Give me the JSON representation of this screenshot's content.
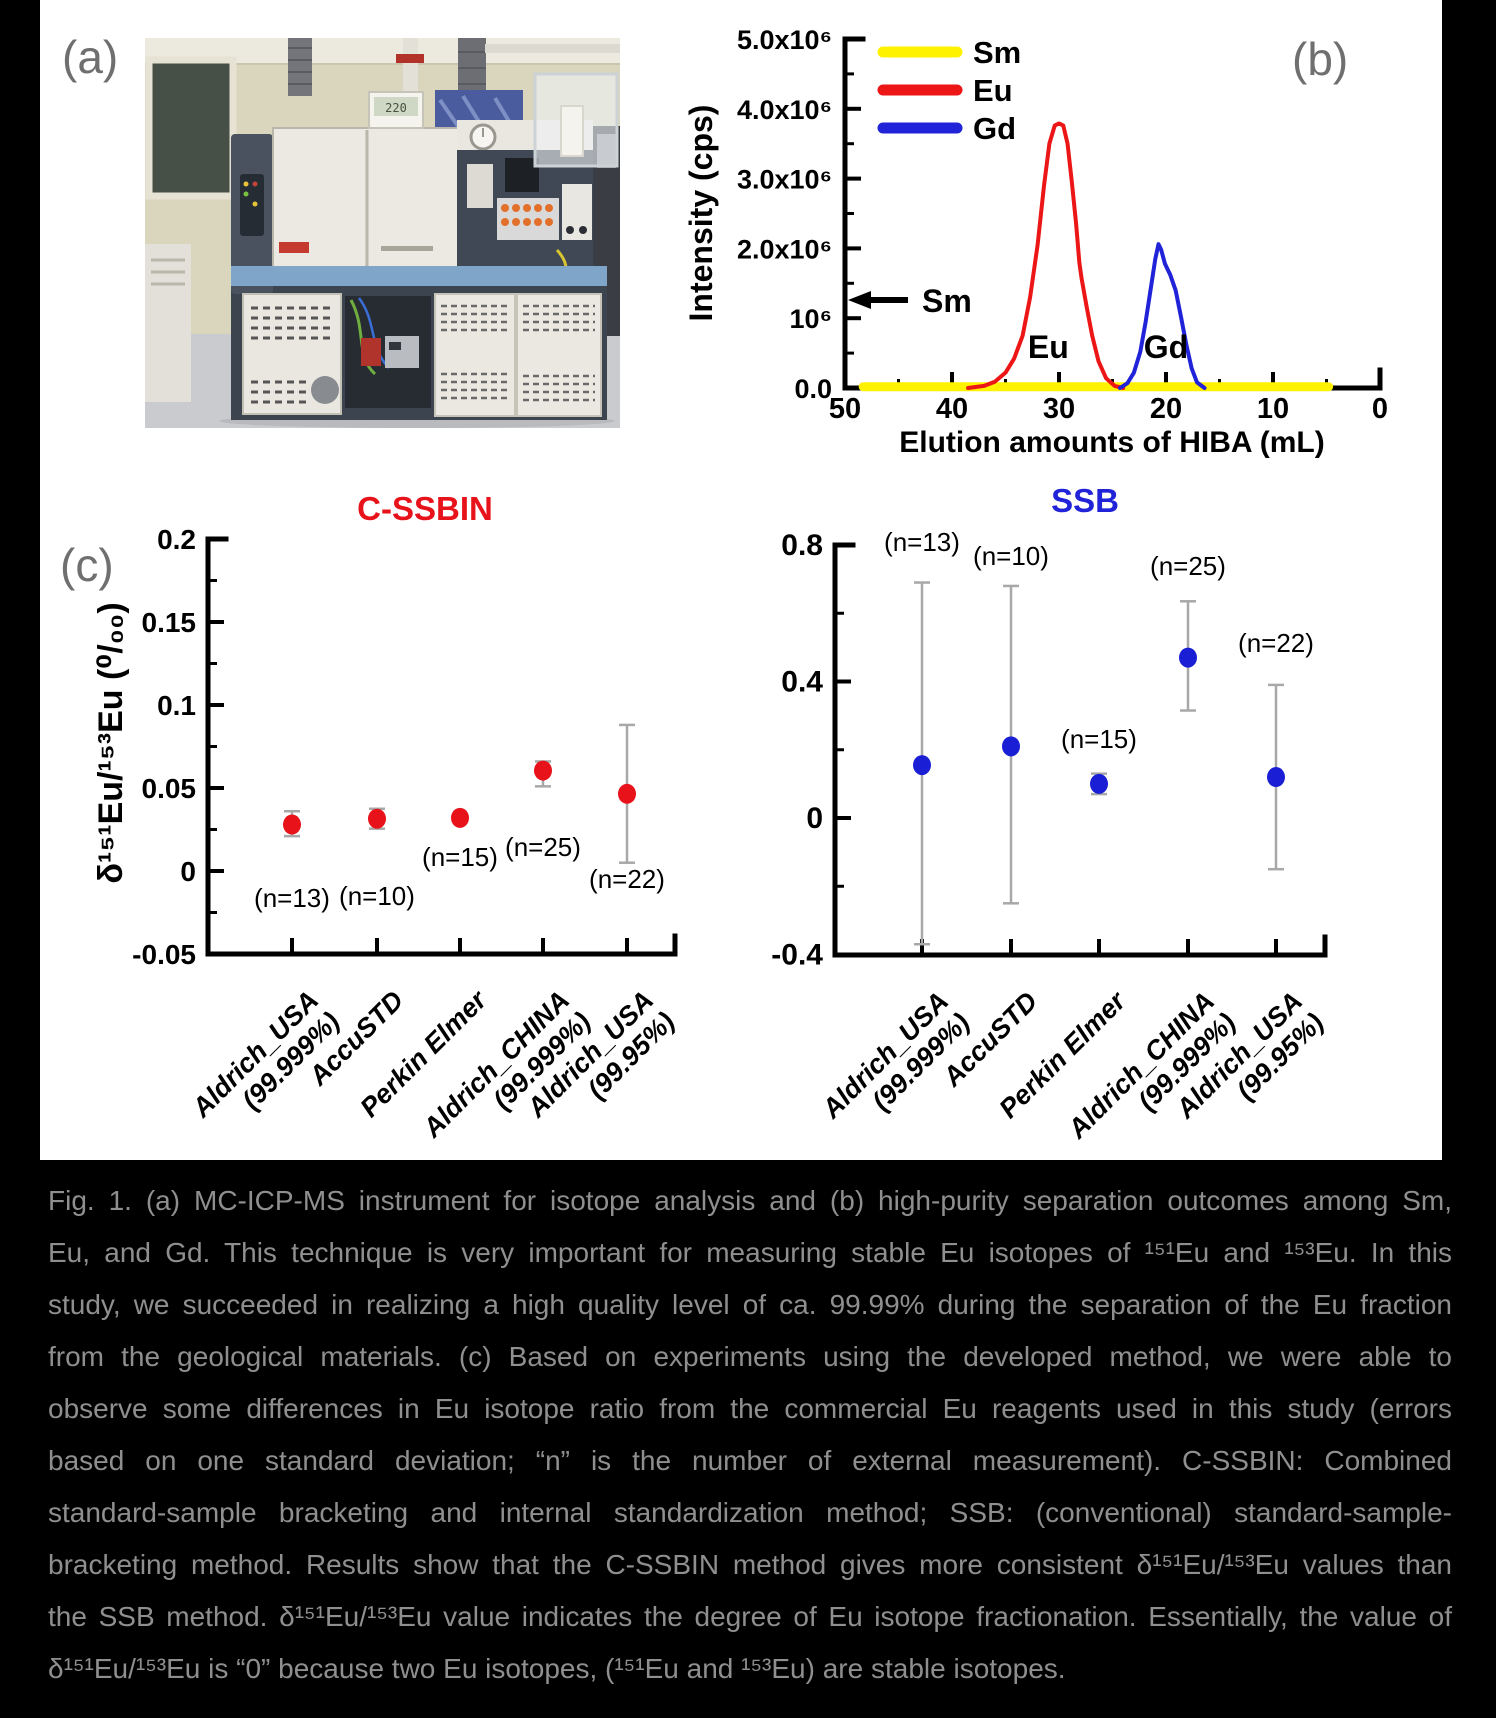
{
  "panel_labels": {
    "a": "(a)",
    "b": "(b)",
    "c": "(c)"
  },
  "photo": {
    "lcd_text": "220"
  },
  "caption": {
    "lines": [
      "Fig. 1. (a) MC-ICP-MS instrument for isotope analysis and (b) high-purity separation outcomes among Sm,",
      "Eu, and Gd. This technique is very important for measuring stable Eu isotopes of ¹⁵¹Eu and ¹⁵³Eu. In this",
      "study, we succeeded in realizing a high quality level of ca. 99.99% during the separation of the Eu fraction",
      "from the geological materials. (c) Based on experiments using the developed method, we were able to",
      "observe some differences in Eu isotope ratio from the commercial Eu reagents used in this study (errors",
      "based on one standard deviation; “n” is the number of external measurement). C-SSBIN: Combined",
      "standard-sample bracketing and internal standardization method; SSB: (conventional) standard-sample-",
      "bracketing method. Results show that the C-SSBIN method gives more consistent δ¹⁵¹Eu/¹⁵³Eu values than",
      "the SSB method. δ¹⁵¹Eu/¹⁵³Eu value indicates the degree of Eu isotope fractionation. Essentially, the value of",
      "δ¹⁵¹Eu/¹⁵³Eu is “0” because two Eu isotopes, (¹⁵¹Eu and ¹⁵³Eu) are stable isotopes."
    ]
  },
  "chart_data": [
    {
      "id": "elution-chart",
      "type": "line",
      "xlabel": "Elution amounts of HIBA (mL)",
      "ylabel": "Intensity (cps)",
      "x_reversed": true,
      "xlim": [
        50,
        0
      ],
      "ylim": [
        0,
        5000000
      ],
      "x_ticks": [
        50,
        40,
        30,
        20,
        10,
        0
      ],
      "x_minor_ticks": [
        45,
        35,
        25,
        15,
        5
      ],
      "y_ticks": [
        {
          "value": 0,
          "label": "0.0"
        },
        {
          "value": 1000000,
          "label": "10⁶"
        },
        {
          "value": 2000000,
          "label": "2.0x10⁶"
        },
        {
          "value": 3000000,
          "label": "3.0x10⁶"
        },
        {
          "value": 4000000,
          "label": "4.0x10⁶"
        },
        {
          "value": 5000000,
          "label": "5.0x10⁶"
        }
      ],
      "y_minor_ticks": [
        500000,
        1500000,
        2500000,
        3500000,
        4500000
      ],
      "legend": [
        {
          "name": "Sm",
          "color": "#fff200"
        },
        {
          "name": "Eu",
          "color": "#ec1616"
        },
        {
          "name": "Gd",
          "color": "#2023d8"
        }
      ],
      "annotations": [
        {
          "label": "Sm",
          "kind": "arrow-left",
          "y": 1260000
        },
        {
          "label": "Eu",
          "kind": "text",
          "x": 31,
          "y": 600000
        },
        {
          "label": "Gd",
          "kind": "text",
          "x": 20,
          "y": 600000
        }
      ],
      "series": [
        {
          "name": "Sm",
          "color": "#fff200",
          "points": [
            [
              48.3,
              18000
            ],
            [
              4.8,
              18000
            ]
          ]
        },
        {
          "name": "Eu",
          "color": "#ec1616",
          "points": [
            [
              38.5,
              0
            ],
            [
              37,
              30000
            ],
            [
              36,
              90000
            ],
            [
              35,
              220000
            ],
            [
              34.2,
              420000
            ],
            [
              33.4,
              750000
            ],
            [
              32.7,
              1300000
            ],
            [
              32,
              2050000
            ],
            [
              31.4,
              2900000
            ],
            [
              30.9,
              3500000
            ],
            [
              30.4,
              3760000
            ],
            [
              30,
              3790000
            ],
            [
              29.6,
              3760000
            ],
            [
              29.2,
              3500000
            ],
            [
              28.8,
              2950000
            ],
            [
              28.4,
              2350000
            ],
            [
              28.1,
              1800000
            ],
            [
              27.9,
              1580000
            ],
            [
              27.4,
              1150000
            ],
            [
              26.9,
              750000
            ],
            [
              26.3,
              380000
            ],
            [
              25.6,
              140000
            ],
            [
              24.8,
              30000
            ],
            [
              24,
              0
            ]
          ]
        },
        {
          "name": "Gd",
          "color": "#2023d8",
          "points": [
            [
              24.3,
              0
            ],
            [
              23.6,
              70000
            ],
            [
              23,
              220000
            ],
            [
              22.4,
              520000
            ],
            [
              21.9,
              950000
            ],
            [
              21.4,
              1450000
            ],
            [
              21,
              1850000
            ],
            [
              20.7,
              2060000
            ],
            [
              20.45,
              1980000
            ],
            [
              20.1,
              1780000
            ],
            [
              19.6,
              1620000
            ],
            [
              19.1,
              1400000
            ],
            [
              18.6,
              1020000
            ],
            [
              18.1,
              620000
            ],
            [
              17.6,
              280000
            ],
            [
              17.1,
              80000
            ],
            [
              16.4,
              0
            ]
          ]
        }
      ]
    },
    {
      "id": "cssbin-chart",
      "type": "scatter",
      "title": "C-SSBIN",
      "title_color": "#e8121a",
      "marker_color": "#e8121a",
      "ylabel": "δ¹⁵¹Eu/¹⁵³Eu (⁰/₀₀)",
      "ylim": [
        -0.05,
        0.2
      ],
      "y_ticks": [
        {
          "value": 0.2,
          "label": "0.2"
        },
        {
          "value": 0.15,
          "label": "0.15"
        },
        {
          "value": 0.1,
          "label": "0.1"
        },
        {
          "value": 0.05,
          "label": "0.05"
        },
        {
          "value": 0,
          "label": "0"
        },
        {
          "value": -0.05,
          "label": "-0.05"
        }
      ],
      "y_minor_ticks": [
        0.175,
        0.125,
        0.075,
        0.025,
        -0.025
      ],
      "categories": [
        [
          "Aldrich_USA",
          "(99.999%)"
        ],
        [
          "AccuSTD"
        ],
        [
          "Perkin Elmer"
        ],
        [
          "Aldrich_CHINA",
          "(99.999%)"
        ],
        [
          "Aldrich_USA",
          "(99.95%)"
        ]
      ],
      "points": [
        {
          "value": 0.028,
          "err_up": 0.008,
          "err_dn": 0.007,
          "n_label": "(n=13)"
        },
        {
          "value": 0.0315,
          "err_up": 0.006,
          "err_dn": 0.006,
          "n_label": "(n=10)"
        },
        {
          "value": 0.032,
          "err_up": 0.002,
          "err_dn": 0.002,
          "n_label": "(n=15)"
        },
        {
          "value": 0.0605,
          "err_up": 0.0055,
          "err_dn": 0.0095,
          "n_label": "(n=25)"
        },
        {
          "value": 0.0465,
          "err_up": 0.0415,
          "err_dn": 0.0415,
          "n_label": "(n=22)"
        }
      ]
    },
    {
      "id": "ssb-chart",
      "type": "scatter",
      "title": "SSB",
      "title_color": "#2023d8",
      "marker_color": "#1a1fd6",
      "ylabel": "",
      "ylim": [
        -0.4,
        0.8
      ],
      "y_ticks": [
        {
          "value": 0.8,
          "label": "0.8"
        },
        {
          "value": 0.4,
          "label": "0.4"
        },
        {
          "value": 0,
          "label": "0"
        },
        {
          "value": -0.4,
          "label": "-0.4"
        }
      ],
      "y_minor_ticks": [
        0.6,
        0.2,
        -0.2
      ],
      "categories": [
        [
          "Aldrich_USA",
          "(99.999%)"
        ],
        [
          "AccuSTD"
        ],
        [
          "Perkin Elmer"
        ],
        [
          "Aldrich_CHINA",
          "(99.999%)"
        ],
        [
          "Aldrich_USA",
          "(99.95%)"
        ]
      ],
      "points": [
        {
          "value": 0.155,
          "err_up": 0.535,
          "err_dn": 0.525,
          "n_label": "(n=13)"
        },
        {
          "value": 0.21,
          "err_up": 0.47,
          "err_dn": 0.46,
          "n_label": "(n=10)"
        },
        {
          "value": 0.1,
          "err_up": 0.03,
          "err_dn": 0.03,
          "n_label": "(n=15)"
        },
        {
          "value": 0.47,
          "err_up": 0.165,
          "err_dn": 0.155,
          "n_label": "(n=25)"
        },
        {
          "value": 0.12,
          "err_up": 0.27,
          "err_dn": 0.27,
          "n_label": "(n=22)"
        }
      ]
    }
  ]
}
